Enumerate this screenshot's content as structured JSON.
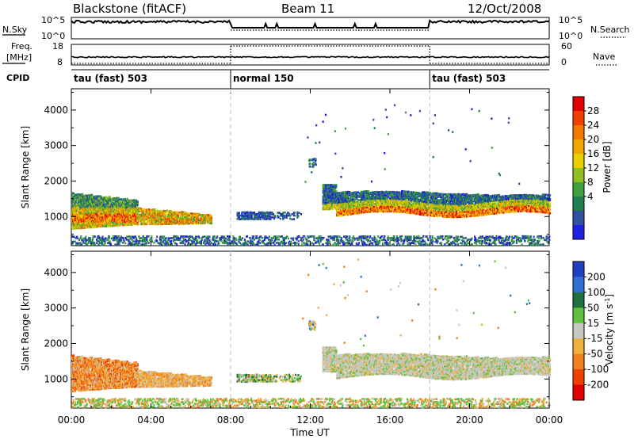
{
  "header": {
    "left": "Blackstone (fitACF)",
    "center": "Beam 11",
    "right": "12/Oct/2008"
  },
  "nsky_panel": {
    "left_label": "N.Sky",
    "right_label": "N.Search",
    "left_ticks": [
      "10^5",
      "10^0"
    ],
    "right_ticks": [
      "10^5",
      "10^0"
    ]
  },
  "freq_panel": {
    "left_label_1": "Freq.",
    "left_label_2": "[MHz]",
    "right_label": "Nave",
    "left_ticks": [
      "18",
      "8"
    ],
    "right_ticks": [
      "60",
      "0"
    ]
  },
  "cpid_panel": {
    "label": "CPID",
    "segments": [
      {
        "label": "tau (fast) 503",
        "start_hour": 0
      },
      {
        "label": "normal 150",
        "start_hour": 8
      },
      {
        "label": "tau (fast) 503",
        "start_hour": 18
      }
    ]
  },
  "chart_data": [
    {
      "type": "heatmap",
      "name": "power",
      "ylabel": "Slant Range [km]",
      "ylim": [
        180,
        4600
      ],
      "yticks": [
        1000,
        2000,
        3000,
        4000
      ],
      "xlim": [
        0,
        24
      ],
      "colorbar": {
        "label": "Power [dB]",
        "ticks": [
          "28",
          "24",
          "20",
          "16",
          "12",
          "8",
          "4"
        ],
        "colors": [
          "#e00000",
          "#f04000",
          "#f07800",
          "#f0a800",
          "#e8d000",
          "#90c020",
          "#40a040",
          "#208050",
          "#3050a0",
          "#2020e0"
        ]
      },
      "regions": [
        {
          "t": [
            0.0,
            3.2
          ],
          "r": [
            650,
            1650
          ],
          "desc": "dense echoes early"
        },
        {
          "t": [
            3.2,
            7.0
          ],
          "r": [
            750,
            1200
          ]
        },
        {
          "t": [
            8.3,
            11.5
          ],
          "r": [
            900,
            1100
          ]
        },
        {
          "t": [
            12.6,
            24.0
          ],
          "r": [
            1050,
            1750
          ]
        }
      ]
    },
    {
      "type": "heatmap",
      "name": "velocity",
      "ylabel": "Slant Range [km]",
      "ylim": [
        180,
        4600
      ],
      "yticks": [
        1000,
        2000,
        3000,
        4000
      ],
      "xlim": [
        0,
        24
      ],
      "colorbar": {
        "label": "Velocity [m s^-1]",
        "ticks": [
          "200",
          "100",
          "50",
          "15",
          "-15",
          "-50",
          "-100",
          "-200"
        ],
        "colors": [
          "#2040c0",
          "#3070d0",
          "#207040",
          "#60c040",
          "#c8c8c0",
          "#f0b040",
          "#f08020",
          "#f04000",
          "#e00000"
        ]
      }
    }
  ],
  "xaxis": {
    "label": "Time UT",
    "ticks": [
      "00:00",
      "04:00",
      "08:00",
      "12:00",
      "16:00",
      "20:00",
      "00:00"
    ],
    "tick_hours": [
      0,
      4,
      8,
      12,
      16,
      20,
      24
    ]
  }
}
